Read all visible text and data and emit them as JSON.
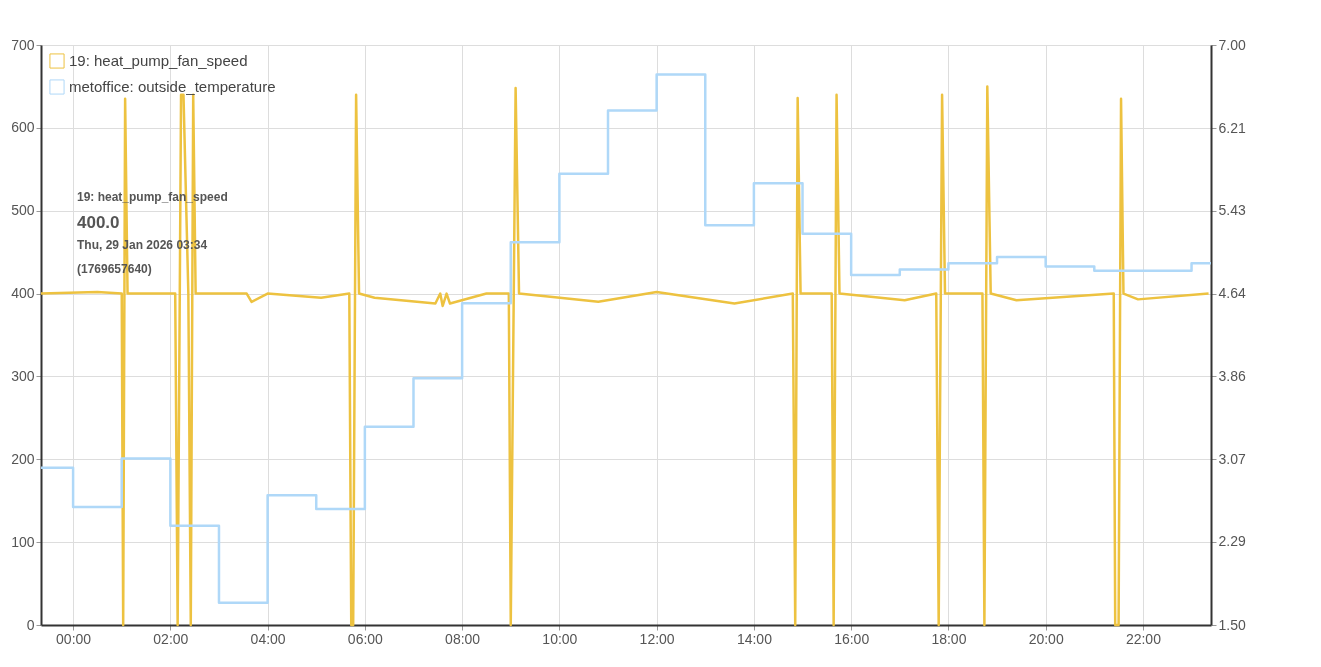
{
  "chart_data": {
    "type": "line",
    "xlim": [
      -0.66,
      23.4
    ],
    "xticks": [
      {
        "value": 0,
        "label": "00:00"
      },
      {
        "value": 2,
        "label": "02:00"
      },
      {
        "value": 4,
        "label": "04:00"
      },
      {
        "value": 6,
        "label": "06:00"
      },
      {
        "value": 8,
        "label": "08:00"
      },
      {
        "value": 10,
        "label": "10:00"
      },
      {
        "value": 12,
        "label": "12:00"
      },
      {
        "value": 14,
        "label": "14:00"
      },
      {
        "value": 16,
        "label": "16:00"
      },
      {
        "value": 18,
        "label": "18:00"
      },
      {
        "value": 20,
        "label": "20:00"
      },
      {
        "value": 22,
        "label": "22:00"
      }
    ],
    "ylim": [
      0,
      700
    ],
    "yticks": [
      0,
      100,
      200,
      300,
      400,
      500,
      600,
      700
    ],
    "y2lim": [
      1.5,
      7.0
    ],
    "y2ticks": [
      {
        "value": 1.5,
        "label": "1.50"
      },
      2.29,
      3.07,
      3.86,
      4.64,
      5.43,
      6.21,
      {
        "value": 7.0,
        "label": "7.00"
      }
    ],
    "grid": true,
    "legend": "top left",
    "annotations": [
      "19: heat_pump_fan_speed",
      "400.0",
      "Thu, 29 Jan 2026 03:34",
      "(1769657640)"
    ],
    "series": [
      {
        "name": "19: heat_pump_fan_speed",
        "type": "line",
        "color": "#edc240",
        "x": [
          -0.66,
          0.5,
          1.0,
          1.03,
          1.07,
          1.12,
          2.1,
          2.15,
          2.22,
          2.27,
          2.37,
          2.42,
          2.47,
          2.52,
          3.57,
          3.67,
          4.0,
          5.1,
          5.68,
          5.72,
          5.76,
          5.82,
          5.88,
          6.2,
          7.45,
          7.55,
          7.6,
          7.68,
          7.75,
          8.5,
          8.96,
          9.0,
          9.1,
          9.17,
          10.8,
          12.0,
          13.6,
          14.8,
          14.85,
          14.9,
          14.96,
          15.6,
          15.64,
          15.7,
          15.76,
          17.1,
          17.75,
          17.8,
          17.87,
          17.93,
          18.7,
          18.74,
          18.8,
          18.87,
          19.4,
          21.4,
          21.43,
          21.5,
          21.55,
          21.6,
          21.9,
          23.35
        ],
        "values": [
          400,
          402,
          400,
          0,
          635,
          400,
          400,
          0,
          640,
          640,
          400,
          0,
          640,
          400,
          400,
          390,
          400,
          395,
          400,
          0,
          0,
          640,
          400,
          395,
          388,
          400,
          385,
          400,
          388,
          400,
          400,
          0,
          648,
          400,
          390,
          402,
          388,
          400,
          0,
          636,
          400,
          400,
          0,
          640,
          400,
          392,
          400,
          0,
          640,
          400,
          400,
          0,
          650,
          400,
          392,
          400,
          0,
          0,
          635,
          400,
          393,
          400
        ]
      },
      {
        "name": "metoffice: outside_temperature",
        "type": "step",
        "axis": "y2",
        "color": "#afd8f8",
        "x": [
          -0.66,
          0,
          1,
          2,
          3,
          4,
          5,
          6,
          7,
          8,
          9,
          10,
          11,
          12,
          13,
          14,
          15,
          16,
          17,
          18,
          19,
          20,
          21,
          22,
          23,
          23.4
        ],
        "values": [
          2.99,
          2.62,
          3.08,
          2.44,
          1.71,
          2.73,
          2.6,
          3.38,
          3.84,
          4.55,
          5.13,
          5.78,
          6.38,
          6.72,
          5.29,
          5.69,
          5.21,
          4.82,
          4.87,
          4.93,
          4.99,
          4.9,
          4.86,
          4.86,
          4.93,
          4.93
        ]
      }
    ]
  }
}
